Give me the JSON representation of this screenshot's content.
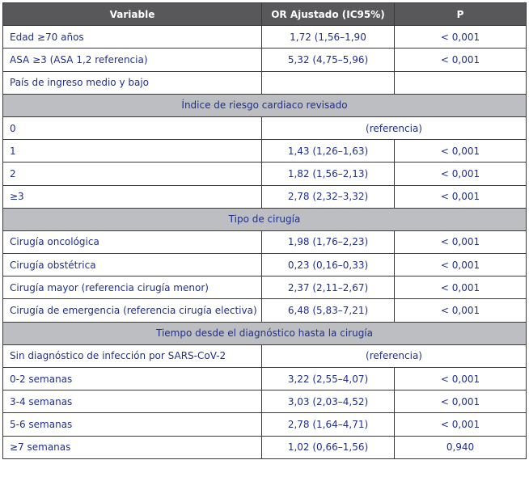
{
  "header": {
    "variable": "Variable",
    "or": "OR Ajustado (IC95%)",
    "p": "P"
  },
  "rows": [
    {
      "type": "row",
      "variable": "Edad ≥70 años",
      "or": "1,72 (1,56–1,90",
      "p": "< 0,001"
    },
    {
      "type": "row",
      "variable": "ASA ≥3 (ASA 1,2 referencia)",
      "or": "5,32 (4,75–5,96)",
      "p": "< 0,001"
    },
    {
      "type": "row",
      "variable": "País de ingreso medio y bajo",
      "or": "",
      "p": ""
    },
    {
      "type": "section",
      "label": "Índice de riesgo cardiaco revisado"
    },
    {
      "type": "ref",
      "variable": "0",
      "ref": "(referencia)"
    },
    {
      "type": "row",
      "variable": "1",
      "or": "1,43 (1,26–1,63)",
      "p": "< 0,001"
    },
    {
      "type": "row",
      "variable": "2",
      "or": "1,82 (1,56–2,13)",
      "p": "< 0,001"
    },
    {
      "type": "row",
      "variable": "≥3",
      "or": "2,78 (2,32–3,32)",
      "p": "< 0,001"
    },
    {
      "type": "section",
      "label": "Tipo de cirugía"
    },
    {
      "type": "row",
      "variable": "Cirugía oncológica",
      "or": "1,98 (1,76–2,23)",
      "p": "< 0,001"
    },
    {
      "type": "row",
      "variable": "Cirugía obstétrica",
      "or": "0,23 (0,16–0,33)",
      "p": "< 0,001"
    },
    {
      "type": "row",
      "variable": "Cirugía mayor (referencia cirugía menor)",
      "or": "2,37 (2,11–2,67)",
      "p": "< 0,001"
    },
    {
      "type": "row",
      "variable": "Cirugía de emergencia (referencia cirugía electiva)",
      "or": "6,48 (5,83–7,21)",
      "p": "< 0,001"
    },
    {
      "type": "section",
      "label": "Tiempo desde el diagnóstico hasta la cirugía"
    },
    {
      "type": "ref",
      "variable": "Sin diagnóstico de infección por SARS-CoV-2",
      "ref": "(referencia)"
    },
    {
      "type": "row",
      "variable": "0-2 semanas",
      "or": "3,22 (2,55–4,07)",
      "p": "< 0,001"
    },
    {
      "type": "row",
      "variable": "3-4 semanas",
      "or": "3,03 (2,03–4,52)",
      "p": "< 0,001"
    },
    {
      "type": "row",
      "variable": "5-6 semanas",
      "or": "2,78 (1,64–4,71)",
      "p": "< 0,001"
    },
    {
      "type": "row",
      "variable": "≥7 semanas",
      "or": "1,02 (0,66–1,56)",
      "p": "0,940"
    }
  ]
}
